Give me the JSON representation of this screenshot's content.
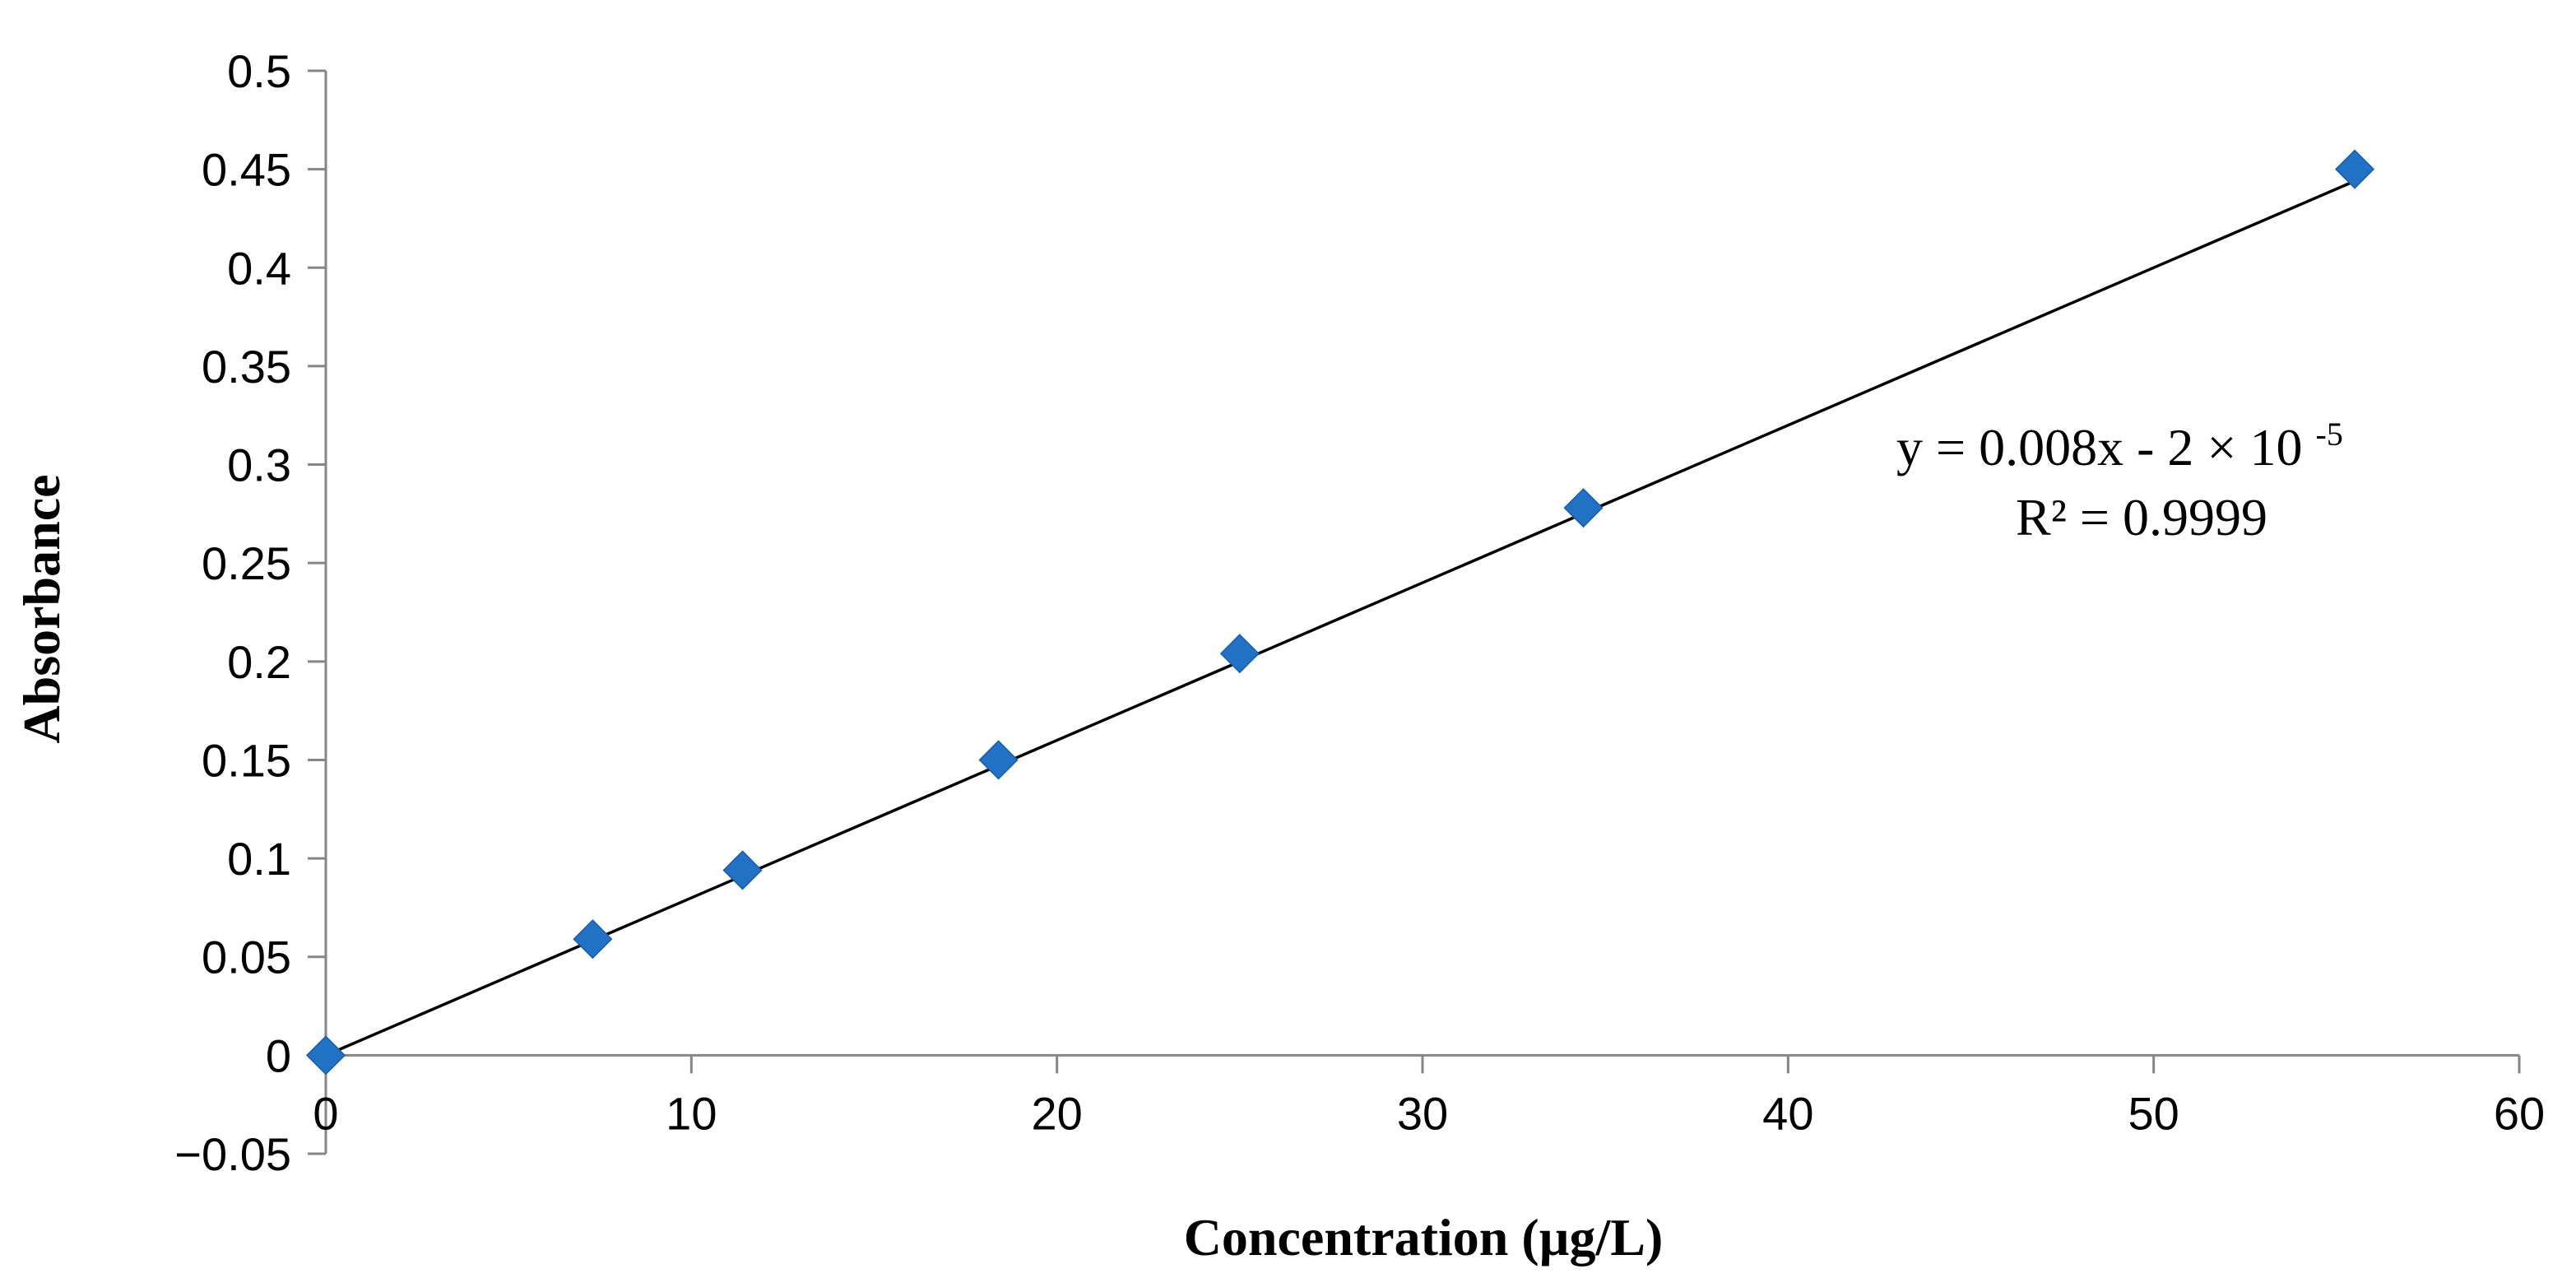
{
  "chart_data": {
    "type": "scatter",
    "title": "",
    "xlabel": "Concentration (µg/L)",
    "ylabel": "Absorbance",
    "xlim": [
      0,
      60
    ],
    "ylim": [
      -0.05,
      0.5
    ],
    "x_ticks": [
      {
        "value": 0,
        "label": "0"
      },
      {
        "value": 10,
        "label": "10"
      },
      {
        "value": 20,
        "label": "20"
      },
      {
        "value": 30,
        "label": "30"
      },
      {
        "value": 40,
        "label": "40"
      },
      {
        "value": 50,
        "label": "50"
      },
      {
        "value": 60,
        "label": "60"
      }
    ],
    "y_ticks": [
      {
        "value": -0.05,
        "label": "−0.05"
      },
      {
        "value": 0,
        "label": "0"
      },
      {
        "value": 0.05,
        "label": "0.05"
      },
      {
        "value": 0.1,
        "label": "0.1"
      },
      {
        "value": 0.15,
        "label": "0.15"
      },
      {
        "value": 0.2,
        "label": "0.2"
      },
      {
        "value": 0.25,
        "label": "0.25"
      },
      {
        "value": 0.3,
        "label": "0.3"
      },
      {
        "value": 0.35,
        "label": "0.35"
      },
      {
        "value": 0.4,
        "label": "0.4"
      },
      {
        "value": 0.45,
        "label": "0.45"
      },
      {
        "value": 0.5,
        "label": "0.5"
      }
    ],
    "grid": false,
    "series": [
      {
        "name": "Absorbance",
        "color": "#2171c4",
        "marker": "diamond",
        "x": [
          0,
          7.3,
          11.4,
          18.4,
          25.0,
          34.4,
          55.5
        ],
        "y": [
          0,
          0.059,
          0.094,
          0.15,
          0.204,
          0.278,
          0.45
        ]
      }
    ],
    "trendline": {
      "type": "linear",
      "slope": 0.008,
      "intercept": -2e-05,
      "x_range": [
        0,
        55.5
      ],
      "color": "#000000",
      "equation_main": "y = 0.008x - 2 × 10",
      "equation_exp": "-5",
      "r_squared_label": "R² = 0.9999"
    },
    "annotation_placement": "upper-right, above trendline"
  }
}
